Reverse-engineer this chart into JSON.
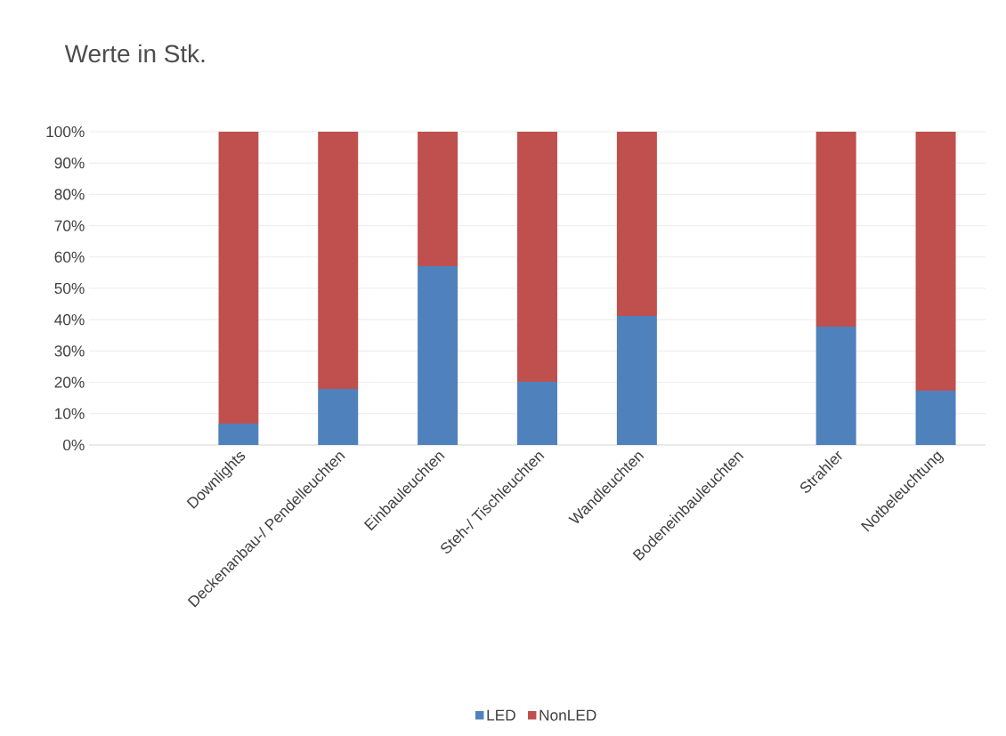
{
  "chart_data": {
    "type": "bar",
    "stacked": true,
    "title": "Werte in Stk.",
    "categories": [
      null,
      "Downlights",
      "Deckenanbau-/ Pendelleuchten",
      "Einbauleuchten",
      "Steh-/ Tischleuchten",
      "Wandleuchten",
      "Bodeneinbauleuchten",
      "Strahler",
      "Notbeleuchtung"
    ],
    "series": [
      {
        "name": "LED",
        "color": "#4f81bd",
        "values": [
          null,
          6.8,
          17.9,
          57.1,
          20.2,
          41.2,
          null,
          37.8,
          17.3
        ]
      },
      {
        "name": "NonLED",
        "color": "#c0504d",
        "values": [
          null,
          93.2,
          82.1,
          42.9,
          79.8,
          58.8,
          null,
          62.2,
          82.7
        ]
      }
    ],
    "ylim": [
      0,
      100
    ],
    "yticks": [
      {
        "value": 0,
        "label": "0%"
      },
      {
        "value": 10,
        "label": "10%"
      },
      {
        "value": 20,
        "label": "20%"
      },
      {
        "value": 30,
        "label": "30%"
      },
      {
        "value": 40,
        "label": "40%"
      },
      {
        "value": 50,
        "label": "50%"
      },
      {
        "value": 60,
        "label": "60%"
      },
      {
        "value": 70,
        "label": "70%"
      },
      {
        "value": 80,
        "label": "80%"
      },
      {
        "value": 90,
        "label": "90%"
      },
      {
        "value": 100,
        "label": "100%"
      }
    ],
    "grid": "y",
    "legend": "bottom"
  }
}
